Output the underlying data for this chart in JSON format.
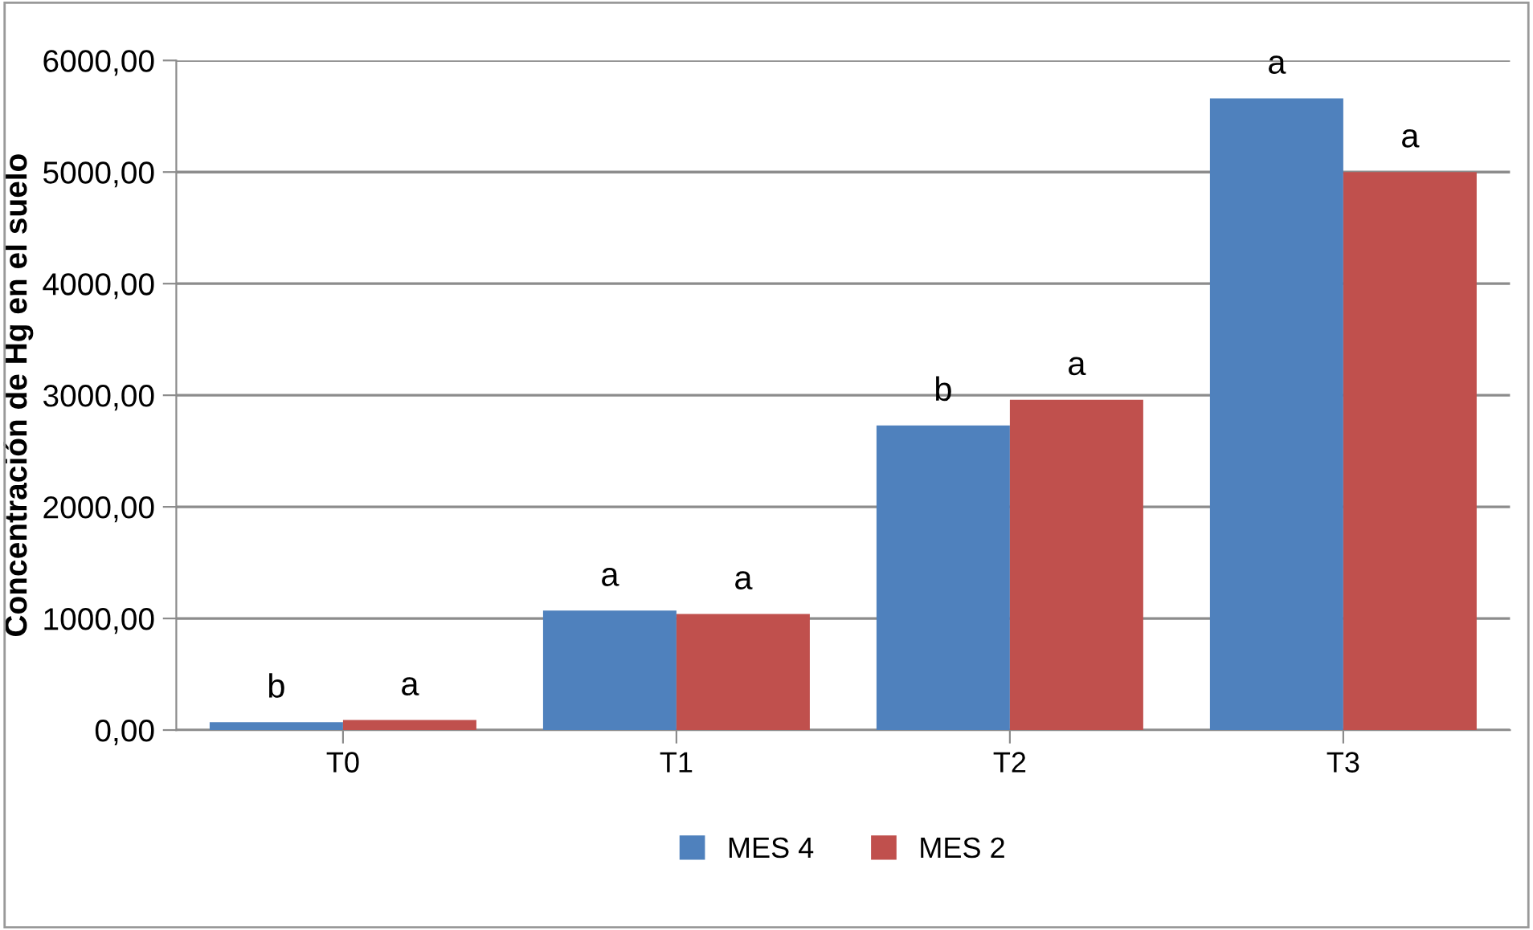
{
  "chart_data": {
    "type": "bar",
    "ylabel": "Concentración de Hg en el suelo",
    "categories": [
      "T0",
      "T1",
      "T2",
      "T3"
    ],
    "series": [
      {
        "name": "MES 4",
        "color": "#4f81bd",
        "values": [
          70,
          1070,
          2730,
          5660
        ],
        "value_labels": [
          "b",
          "a",
          "b",
          "a"
        ]
      },
      {
        "name": "MES 2",
        "color": "#c0504d",
        "values": [
          90,
          1040,
          2960,
          5000
        ],
        "value_labels": [
          "a",
          "a",
          "a",
          "a"
        ]
      }
    ],
    "ylim": [
      0,
      6000
    ],
    "yticks": [
      {
        "value": 0,
        "label": "0,00"
      },
      {
        "value": 1000,
        "label": "1000,00"
      },
      {
        "value": 2000,
        "label": "2000,00"
      },
      {
        "value": 3000,
        "label": "3000,00"
      },
      {
        "value": 4000,
        "label": "4000,00"
      },
      {
        "value": 5000,
        "label": "5000,00"
      },
      {
        "value": 6000,
        "label": "6000,00"
      }
    ],
    "grid": "y",
    "legend": "bottom"
  }
}
